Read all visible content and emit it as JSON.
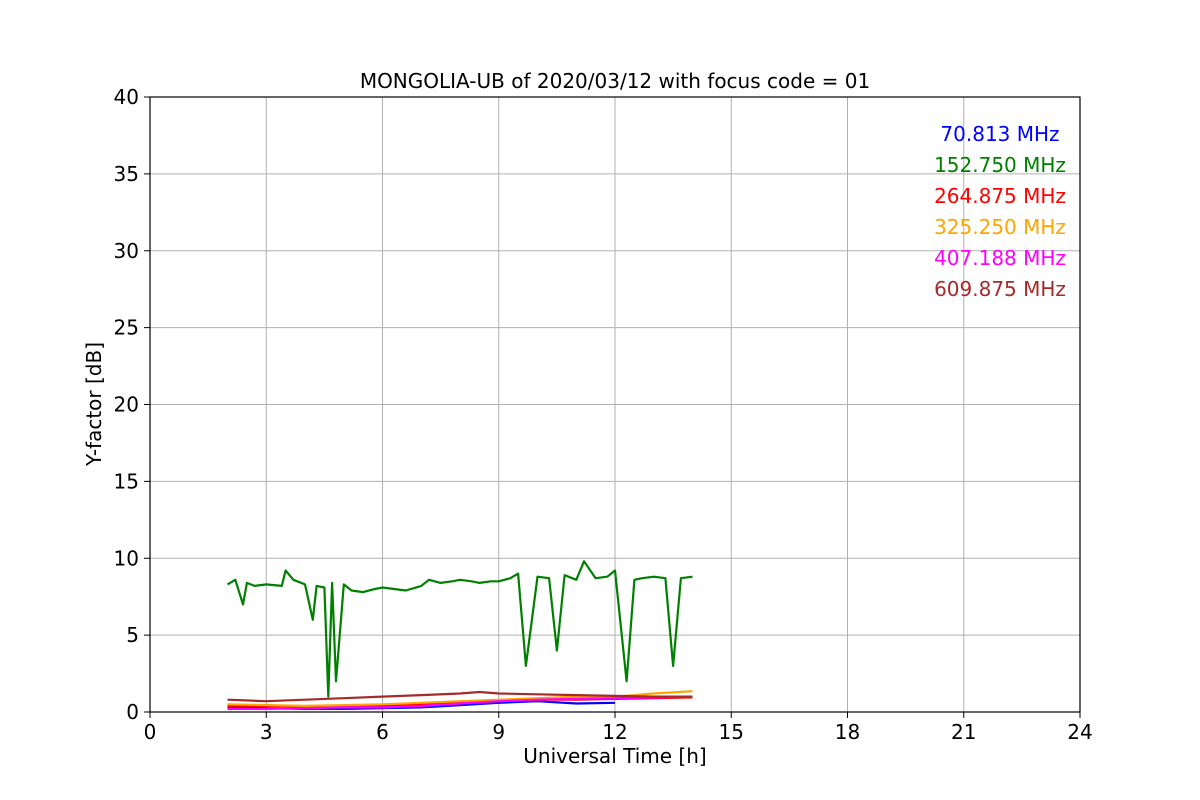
{
  "chart_data": {
    "type": "line",
    "title": "MONGOLIA-UB of 2020/03/12 with focus code = 01",
    "xlabel": "Universal Time [h]",
    "ylabel": "Y-factor [dB]",
    "xlim": [
      0,
      24
    ],
    "ylim": [
      0,
      40
    ],
    "xticks": [
      0,
      3,
      6,
      9,
      12,
      15,
      18,
      21,
      24
    ],
    "yticks": [
      0,
      5,
      10,
      15,
      20,
      25,
      30,
      35,
      40
    ],
    "xtick_labels": [
      "0",
      "3",
      "6",
      "9",
      "12",
      "15",
      "18",
      "21",
      "24"
    ],
    "ytick_labels": [
      "0",
      "5",
      "10",
      "15",
      "20",
      "25",
      "30",
      "35",
      "40"
    ],
    "grid": true,
    "legend_position": "top-right",
    "series": [
      {
        "name": "70.813 MHz",
        "color": "#0000ff",
        "x": [
          2.0,
          3.0,
          4.0,
          5.0,
          6.0,
          7.0,
          8.0,
          9.0,
          10.0,
          11.0,
          12.0
        ],
        "y": [
          0.3,
          0.25,
          0.2,
          0.2,
          0.25,
          0.3,
          0.45,
          0.6,
          0.7,
          0.55,
          0.6
        ]
      },
      {
        "name": "152.750 MHz",
        "color": "#008000",
        "x": [
          2.0,
          2.2,
          2.4,
          2.5,
          2.7,
          3.0,
          3.4,
          3.5,
          3.7,
          4.0,
          4.2,
          4.3,
          4.5,
          4.6,
          4.7,
          4.8,
          5.0,
          5.2,
          5.5,
          5.8,
          6.0,
          6.3,
          6.6,
          7.0,
          7.2,
          7.5,
          7.8,
          8.0,
          8.3,
          8.5,
          8.8,
          9.0,
          9.3,
          9.5,
          9.7,
          10.0,
          10.3,
          10.5,
          10.7,
          11.0,
          11.2,
          11.5,
          11.8,
          12.0,
          12.3,
          12.5,
          12.7,
          13.0,
          13.3,
          13.5,
          13.7,
          14.0
        ],
        "y": [
          8.3,
          8.6,
          7.0,
          8.4,
          8.2,
          8.3,
          8.2,
          9.2,
          8.6,
          8.3,
          6.0,
          8.2,
          8.1,
          1.0,
          8.4,
          2.0,
          8.3,
          7.9,
          7.8,
          8.0,
          8.1,
          8.0,
          7.9,
          8.2,
          8.6,
          8.4,
          8.5,
          8.6,
          8.5,
          8.4,
          8.5,
          8.5,
          8.7,
          9.0,
          3.0,
          8.8,
          8.7,
          4.0,
          8.9,
          8.6,
          9.8,
          8.7,
          8.8,
          9.2,
          2.0,
          8.6,
          8.7,
          8.8,
          8.7,
          3.0,
          8.7,
          8.8
        ]
      },
      {
        "name": "264.875 MHz",
        "color": "#ff0000",
        "x": [
          2.0,
          3.0,
          4.0,
          5.0,
          6.0,
          7.0,
          8.0,
          9.0,
          10.0,
          11.0,
          12.0,
          13.0,
          14.0
        ],
        "y": [
          0.4,
          0.4,
          0.35,
          0.35,
          0.4,
          0.5,
          0.6,
          0.7,
          0.8,
          0.8,
          0.85,
          0.9,
          0.95
        ]
      },
      {
        "name": "325.250 MHz",
        "color": "#ffa500",
        "x": [
          2.0,
          3.0,
          4.0,
          5.0,
          6.0,
          7.0,
          8.0,
          9.0,
          10.0,
          11.0,
          12.0,
          13.0,
          14.0
        ],
        "y": [
          0.5,
          0.45,
          0.4,
          0.45,
          0.5,
          0.6,
          0.7,
          0.8,
          0.9,
          1.0,
          1.0,
          1.2,
          1.35
        ]
      },
      {
        "name": "407.188 MHz",
        "color": "#ff00ff",
        "x": [
          2.0,
          3.0,
          4.0,
          5.0,
          6.0,
          7.0,
          8.0,
          9.0,
          10.0,
          11.0,
          12.0,
          13.0,
          14.0
        ],
        "y": [
          0.2,
          0.2,
          0.25,
          0.3,
          0.3,
          0.4,
          0.55,
          0.7,
          0.8,
          0.85,
          0.9,
          0.95,
          1.0
        ]
      },
      {
        "name": "609.875 MHz",
        "color": "#a52a2a",
        "x": [
          2.0,
          3.0,
          4.0,
          5.0,
          6.0,
          7.0,
          8.0,
          8.5,
          9.0,
          10.0,
          11.0,
          12.0,
          13.0,
          14.0
        ],
        "y": [
          0.8,
          0.7,
          0.8,
          0.9,
          1.0,
          1.1,
          1.2,
          1.3,
          1.2,
          1.15,
          1.1,
          1.05,
          1.0,
          1.0
        ]
      }
    ]
  }
}
